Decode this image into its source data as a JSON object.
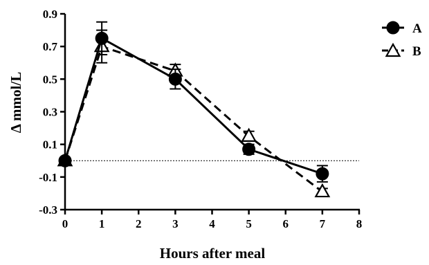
{
  "chart_data": {
    "type": "line",
    "xlabel": "Hours after meal",
    "ylabel": "Δ mmol/L",
    "xlim": [
      0,
      8
    ],
    "ylim": [
      -0.3,
      0.9
    ],
    "xticks": [
      "0",
      "1",
      "2",
      "3",
      "4",
      "5",
      "6",
      "7",
      "8"
    ],
    "yticks": [
      "0.9",
      "0.7",
      "0.5",
      "0.3",
      "0.1",
      "-0.1",
      "-0.3"
    ],
    "reference_line_y": 0,
    "legend_position": "top-right",
    "grid": false,
    "series": [
      {
        "name": "A",
        "marker": "filled-circle",
        "line": "solid",
        "x": [
          0,
          1,
          3,
          5,
          7
        ],
        "y": [
          0,
          0.75,
          0.5,
          0.07,
          -0.08
        ],
        "error": [
          0,
          0.1,
          0.06,
          0.03,
          0.05
        ]
      },
      {
        "name": "B",
        "marker": "open-triangle",
        "line": "dashed",
        "x": [
          0,
          1,
          3,
          5,
          7
        ],
        "y": [
          0,
          0.7,
          0.55,
          0.15,
          -0.19
        ],
        "error": [
          0,
          0.1,
          0.04,
          0.03,
          0.02
        ]
      }
    ]
  }
}
